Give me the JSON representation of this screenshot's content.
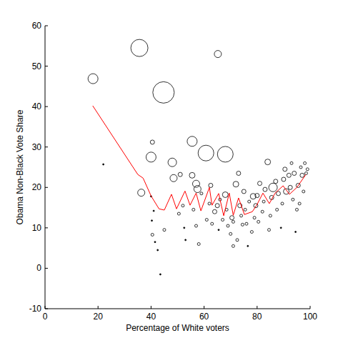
{
  "chart_data": {
    "type": "scatter",
    "x_label": "Percentage of White voters",
    "y_label": "Obama Non-Black Vote Share",
    "xlim": [
      0,
      100
    ],
    "ylim": [
      -10,
      60
    ],
    "xticks": [
      0,
      20,
      40,
      60,
      80,
      100
    ],
    "yticks": [
      -10,
      0,
      10,
      20,
      30,
      40,
      50,
      60
    ],
    "grid": false,
    "series": [
      {
        "type": "scatter",
        "color": "#000000",
        "marker": "circle",
        "x": [
          18.1,
          22,
          35.6,
          36.3,
          40,
          40.5,
          40,
          41,
          40.3,
          40.5,
          41.5,
          42.5,
          43.5,
          45,
          44.7,
          48,
          48.5,
          50.5,
          51,
          52,
          52.5,
          53,
          55.5,
          55.5,
          57,
          57.5,
          56,
          57,
          58,
          59,
          60.7,
          61,
          62,
          62.5,
          63,
          64,
          65,
          65.2,
          65.5,
          66,
          67,
          68,
          68,
          68.5,
          69,
          70,
          70.5,
          71,
          71,
          72,
          72.5,
          73,
          73.5,
          74,
          74.5,
          75,
          75.5,
          76,
          76.5,
          77,
          78,
          78.5,
          79,
          79.5,
          80,
          80.5,
          81,
          82,
          82.5,
          83,
          84,
          84.5,
          85,
          85.5,
          86,
          87,
          87.5,
          88,
          89,
          89.5,
          90,
          90.5,
          91,
          92,
          92.5,
          93,
          93.5,
          94,
          94.5,
          95,
          95.5,
          96,
          96.5,
          97,
          97.5,
          98,
          98.5,
          99
        ],
        "values": [
          46.9,
          25.7,
          54.5,
          18.7,
          27.5,
          31.2,
          17.8,
          14.2,
          11.8,
          8.3,
          6.5,
          4.5,
          -1.5,
          9.5,
          43.5,
          26.2,
          22.3,
          13.5,
          23.2,
          15.5,
          10,
          7,
          31.4,
          23,
          20.9,
          19.6,
          14.5,
          10.5,
          6,
          18.5,
          28.5,
          12,
          16,
          20.5,
          11,
          14,
          15.5,
          53,
          9.5,
          17,
          12,
          28.2,
          18.2,
          14.5,
          10.5,
          8.5,
          12.5,
          5.5,
          11.5,
          20.8,
          7,
          23.5,
          15.5,
          13,
          10.8,
          19,
          14.5,
          11,
          5.5,
          16.5,
          9,
          17.8,
          12.5,
          15.5,
          18,
          11.5,
          21,
          14,
          16.5,
          19.5,
          26.3,
          9.5,
          13,
          17.5,
          20,
          21.5,
          14.5,
          18.5,
          10,
          16,
          22,
          24.5,
          19,
          23,
          20,
          26,
          17,
          23.5,
          9,
          14.5,
          20.5,
          16,
          25,
          23,
          19,
          26,
          23.5,
          24.5
        ],
        "sizes": [
          49,
          1,
          144,
          25,
          49,
          9,
          1,
          1,
          1,
          4,
          1,
          1,
          1,
          4,
          225,
          36,
          25,
          4,
          9,
          4,
          1,
          1,
          49,
          16,
          25,
          25,
          4,
          4,
          4,
          4,
          121,
          4,
          4,
          9,
          4,
          9,
          9,
          25,
          1,
          4,
          4,
          121,
          16,
          4,
          4,
          4,
          9,
          4,
          4,
          16,
          4,
          9,
          9,
          4,
          4,
          9,
          4,
          4,
          1,
          4,
          4,
          16,
          4,
          9,
          9,
          4,
          9,
          4,
          4,
          9,
          16,
          4,
          4,
          9,
          36,
          9,
          4,
          9,
          1,
          4,
          9,
          9,
          16,
          9,
          9,
          4,
          4,
          9,
          1,
          4,
          9,
          4,
          4,
          9,
          4,
          4,
          4,
          4
        ]
      },
      {
        "type": "line",
        "color": "#ff0000",
        "line_style": "solid",
        "x": [
          18,
          35,
          37,
          40,
          43,
          45,
          47.7,
          49.6,
          52.8,
          54.7,
          57,
          58.8,
          62,
          63,
          65.5,
          67.4,
          69.5,
          71,
          73,
          75.2,
          78.2,
          80,
          82.2,
          84.6,
          86.8,
          89.8,
          92.2,
          95,
          98.4
        ],
        "values": [
          40.2,
          23.2,
          22.3,
          17.9,
          14.7,
          14.4,
          18.3,
          14.7,
          19.1,
          15.6,
          18.6,
          14.2,
          20,
          15.6,
          18.5,
          13,
          18.6,
          13.1,
          17.4,
          13.3,
          14,
          15.8,
          18.6,
          16,
          18.6,
          20.4,
          18.3,
          20,
          23.2
        ]
      }
    ]
  }
}
